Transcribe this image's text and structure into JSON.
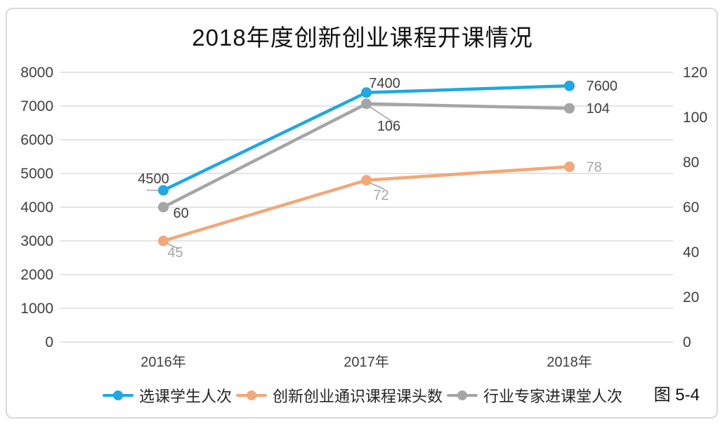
{
  "chart": {
    "title": "2018年度创新创业课程开课情况",
    "figure_label": "图 5-4"
  },
  "legend": {
    "items": [
      {
        "label": "选课学生人次",
        "color": "#1FA8E2"
      },
      {
        "label": "创新创业通识课程课头数",
        "color": "#F2A878"
      },
      {
        "label": "行业专家进课堂人次",
        "color": "#A5A5A5"
      }
    ]
  },
  "chart_data": {
    "type": "line",
    "title": "2018年度创新创业课程开课情况",
    "categories": [
      "2016年",
      "2017年",
      "2018年"
    ],
    "series": [
      {
        "name": "选课学生人次",
        "axis": "left",
        "color": "#1FA8E2",
        "label_color": "#404040",
        "values": [
          4500,
          7400,
          7600
        ]
      },
      {
        "name": "创新创业通识课程课头数",
        "axis": "right",
        "color": "#F2A878",
        "label_color": "#A6A6A6",
        "values": [
          45,
          72,
          78
        ]
      },
      {
        "name": "行业专家进课堂人次",
        "axis": "right",
        "color": "#A5A5A5",
        "label_color": "#404040",
        "values": [
          60,
          106,
          104
        ]
      }
    ],
    "left_axis": {
      "min": 0,
      "max": 8000,
      "step": 1000,
      "ticks": [
        0,
        1000,
        2000,
        3000,
        4000,
        5000,
        6000,
        7000,
        8000
      ]
    },
    "right_axis": {
      "min": 0,
      "max": 120,
      "step": 20,
      "ticks": [
        0,
        20,
        40,
        60,
        80,
        100,
        120
      ]
    },
    "grid": true,
    "grid_color": "#DCDCDC",
    "tick_label_color": "#404040",
    "data_labels": true,
    "legend_position": "bottom"
  }
}
